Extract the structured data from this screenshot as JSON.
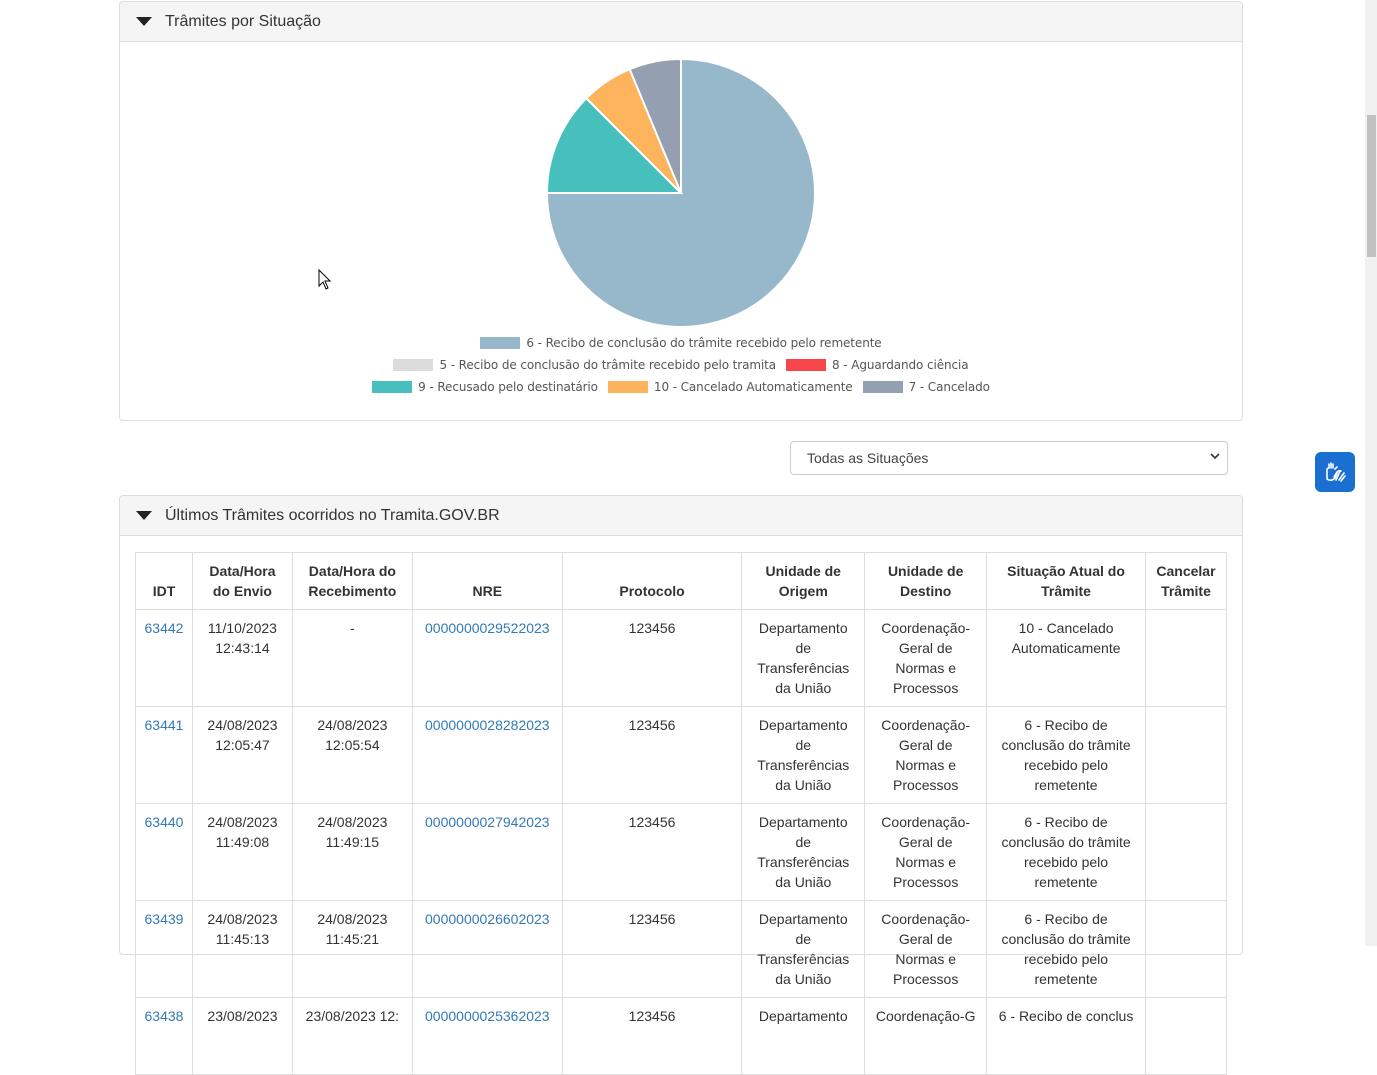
{
  "panel_situacao": {
    "title": "Trâmites por Situação"
  },
  "chart_data": {
    "type": "pie",
    "series": [
      {
        "name": "6 - Recibo de conclusão do trâmite recebido pelo remetente",
        "value": 75,
        "color": "#97b8cb"
      },
      {
        "name": "5 - Recibo de conclusão do trâmite recebido pelo tramita",
        "value": 0,
        "color": "#dcdcdc"
      },
      {
        "name": "8 - Aguardando ciência",
        "value": 0,
        "color": "#f7464a"
      },
      {
        "name": "9 - Recusado pelo destinatário",
        "value": 12.5,
        "color": "#46bfbd"
      },
      {
        "name": "10 - Cancelado Automaticamente",
        "value": 6.25,
        "color": "#fdb45c"
      },
      {
        "name": "7 - Cancelado",
        "value": 6.25,
        "color": "#949fb1"
      }
    ]
  },
  "filter": {
    "selected": "Todas as Situações"
  },
  "panel_ultimos": {
    "title": "Últimos Trâmites ocorridos no Tramita.GOV.BR"
  },
  "table": {
    "headers": [
      "IDT",
      "Data/Hora do Envio",
      "Data/Hora do Recebimento",
      "NRE",
      "Protocolo",
      "Unidade de Origem",
      "Unidade de Destino",
      "Situação Atual do Trâmite",
      "Cancelar Trâmite"
    ],
    "rows": [
      {
        "idt": "63442",
        "envio": "11/10/2023 12:43:14",
        "receb": "-",
        "nre": "0000000029522023",
        "protocolo": "123456",
        "origem": "Departamento de Transferências da União",
        "destino": "Coordenação-Geral de Normas e Processos",
        "situacao": "10 - Cancelado Automaticamente",
        "cancelar": ""
      },
      {
        "idt": "63441",
        "envio": "24/08/2023 12:05:47",
        "receb": "24/08/2023 12:05:54",
        "nre": "0000000028282023",
        "protocolo": "123456",
        "origem": "Departamento de Transferências da União",
        "destino": "Coordenação-Geral de Normas e Processos",
        "situacao": "6 - Recibo de conclusão do trâmite recebido pelo remetente",
        "cancelar": ""
      },
      {
        "idt": "63440",
        "envio": "24/08/2023 11:49:08",
        "receb": "24/08/2023 11:49:15",
        "nre": "0000000027942023",
        "protocolo": "123456",
        "origem": "Departamento de Transferências da União",
        "destino": "Coordenação-Geral de Normas e Processos",
        "situacao": "6 - Recibo de conclusão do trâmite recebido pelo remetente",
        "cancelar": ""
      },
      {
        "idt": "63439",
        "envio": "24/08/2023 11:45:13",
        "receb": "24/08/2023 11:45:21",
        "nre": "0000000026602023",
        "protocolo": "123456",
        "origem": "Departamento de Transferências da União",
        "destino": "Coordenação-Geral de Normas e Processos",
        "situacao": "6 - Recibo de conclusão do trâmite recebido pelo remetente",
        "cancelar": ""
      },
      {
        "idt": "63438",
        "envio": "23/08/2023",
        "receb": "23/08/2023 12:",
        "nre": "0000000025362023",
        "protocolo": "123456",
        "origem": "Departamento",
        "destino": "Coordenação-G",
        "situacao": "6 - Recibo de conclus",
        "cancelar": ""
      }
    ]
  },
  "accessibility": {
    "icon": "sign-language-hands-icon",
    "color": "#1b6fd1"
  }
}
